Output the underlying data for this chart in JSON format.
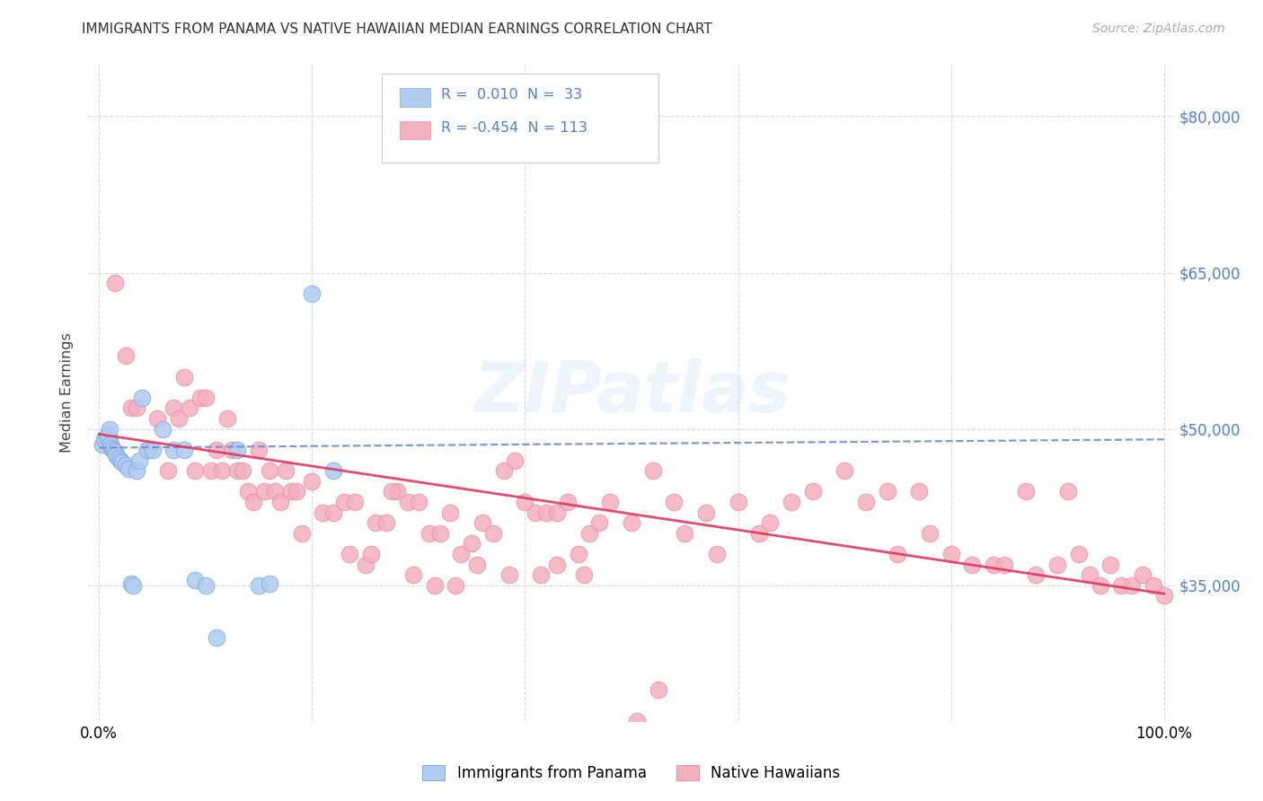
{
  "title": "IMMIGRANTS FROM PANAMA VS NATIVE HAWAIIAN MEDIAN EARNINGS CORRELATION CHART",
  "source": "Source: ZipAtlas.com",
  "ylabel": "Median Earnings",
  "xlim": [
    -1.0,
    101.0
  ],
  "ylim": [
    22000,
    85000
  ],
  "yticks": [
    35000,
    50000,
    65000,
    80000
  ],
  "ytick_labels": [
    "$35,000",
    "$50,000",
    "$65,000",
    "$80,000"
  ],
  "xticks": [
    0,
    20,
    40,
    60,
    80,
    100
  ],
  "xtick_labels": [
    "0.0%",
    "",
    "",
    "",
    "",
    "100.0%"
  ],
  "blue_fill": "#b0ccf0",
  "blue_edge": "#80aae0",
  "pink_fill": "#f5b0c0",
  "pink_edge": "#e890a8",
  "blue_line_color": "#7090d0",
  "pink_line_color": "#e03860",
  "right_axis_color": "#5080d0",
  "watermark": "ZIPatlas",
  "blue_scatter_x": [
    0.3,
    0.5,
    0.7,
    0.8,
    1.0,
    1.1,
    1.2,
    1.3,
    1.5,
    1.6,
    1.8,
    2.0,
    2.2,
    2.5,
    2.8,
    3.0,
    3.2,
    3.5,
    3.8,
    4.0,
    4.5,
    5.0,
    6.0,
    7.0,
    8.0,
    9.0,
    10.0,
    11.0,
    13.0,
    15.0,
    16.0,
    20.0,
    22.0
  ],
  "blue_scatter_y": [
    48500,
    49000,
    49200,
    49500,
    50000,
    48500,
    48200,
    48000,
    47800,
    47500,
    47200,
    47000,
    46800,
    46500,
    46200,
    35200,
    35000,
    46000,
    47000,
    53000,
    48000,
    48000,
    50000,
    48000,
    48000,
    35500,
    35000,
    30000,
    48000,
    35000,
    35200,
    63000,
    46000
  ],
  "pink_scatter_x": [
    1.0,
    1.5,
    2.5,
    3.0,
    3.5,
    4.5,
    5.5,
    6.5,
    7.0,
    7.5,
    8.0,
    8.5,
    9.0,
    9.5,
    10.0,
    10.5,
    11.0,
    11.5,
    12.0,
    12.5,
    13.0,
    13.5,
    14.0,
    14.5,
    15.0,
    15.5,
    16.0,
    16.5,
    17.0,
    17.5,
    18.0,
    18.5,
    19.0,
    20.0,
    21.0,
    22.0,
    23.0,
    24.0,
    25.0,
    26.0,
    27.0,
    28.0,
    29.0,
    30.0,
    31.0,
    32.0,
    33.0,
    34.0,
    35.0,
    36.0,
    37.0,
    38.0,
    39.0,
    40.0,
    41.0,
    42.0,
    43.0,
    44.0,
    45.0,
    46.0,
    47.0,
    48.0,
    50.0,
    52.0,
    54.0,
    55.0,
    57.0,
    58.0,
    60.0,
    62.0,
    63.0,
    65.0,
    67.0,
    70.0,
    72.0,
    74.0,
    75.0,
    77.0,
    78.0,
    80.0,
    82.0,
    84.0,
    85.0,
    87.0,
    88.0,
    90.0,
    91.0,
    92.0,
    93.0,
    94.0,
    95.0,
    96.0,
    97.0,
    98.0,
    99.0,
    100.0,
    50.5,
    52.5,
    45.5,
    43.0,
    41.5,
    38.5,
    35.5,
    33.5,
    31.5,
    29.5,
    27.5,
    25.5,
    23.5
  ],
  "pink_scatter_y": [
    49000,
    64000,
    57000,
    52000,
    52000,
    48000,
    51000,
    46000,
    52000,
    51000,
    55000,
    52000,
    46000,
    53000,
    53000,
    46000,
    48000,
    46000,
    51000,
    48000,
    46000,
    46000,
    44000,
    43000,
    48000,
    44000,
    46000,
    44000,
    43000,
    46000,
    44000,
    44000,
    40000,
    45000,
    42000,
    42000,
    43000,
    43000,
    37000,
    41000,
    41000,
    44000,
    43000,
    43000,
    40000,
    40000,
    42000,
    38000,
    39000,
    41000,
    40000,
    46000,
    47000,
    43000,
    42000,
    42000,
    42000,
    43000,
    38000,
    40000,
    41000,
    43000,
    41000,
    46000,
    43000,
    40000,
    42000,
    38000,
    43000,
    40000,
    41000,
    43000,
    44000,
    46000,
    43000,
    44000,
    38000,
    44000,
    40000,
    38000,
    37000,
    37000,
    37000,
    44000,
    36000,
    37000,
    44000,
    38000,
    36000,
    35000,
    37000,
    35000,
    35000,
    36000,
    35000,
    34000,
    22000,
    25000,
    36000,
    37000,
    36000,
    36000,
    37000,
    35000,
    35000,
    36000,
    44000,
    38000,
    38000
  ]
}
